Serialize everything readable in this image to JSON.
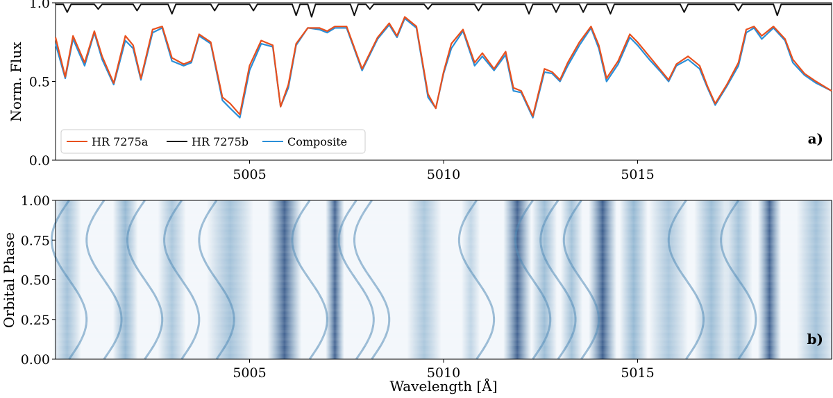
{
  "chart_data": [
    {
      "id": "a",
      "type": "line",
      "panel_label": "a)",
      "xlabel": "",
      "ylabel": "Norm. Flux",
      "xlim": [
        5000.0,
        5020.0
      ],
      "ylim": [
        0.0,
        1.0
      ],
      "xticks": [
        5005,
        5010,
        5015
      ],
      "yticks": [
        0.0,
        0.5,
        1.0
      ],
      "ytick_labels": [
        "0.0",
        "0.5",
        "1.0"
      ],
      "legend_position": "bottom-left",
      "series": [
        {
          "name": "HR 7275a",
          "color": "#e8501e",
          "x": [
            5000.0,
            5000.25,
            5000.45,
            5000.75,
            5001.0,
            5001.2,
            5001.5,
            5001.8,
            5002.0,
            5002.2,
            5002.5,
            5002.75,
            5003.0,
            5003.3,
            5003.5,
            5003.7,
            5004.0,
            5004.3,
            5004.5,
            5004.75,
            5005.0,
            5005.3,
            5005.6,
            5005.8,
            5006.0,
            5006.2,
            5006.5,
            5006.8,
            5007.0,
            5007.2,
            5007.5,
            5007.9,
            5008.3,
            5008.6,
            5008.8,
            5009.0,
            5009.3,
            5009.6,
            5009.8,
            5010.0,
            5010.2,
            5010.5,
            5010.8,
            5011.0,
            5011.3,
            5011.6,
            5011.8,
            5012.0,
            5012.3,
            5012.6,
            5012.8,
            5013.0,
            5013.2,
            5013.5,
            5013.8,
            5014.0,
            5014.2,
            5014.5,
            5014.8,
            5015.0,
            5015.3,
            5015.6,
            5015.8,
            5016.0,
            5016.3,
            5016.6,
            5016.8,
            5017.0,
            5017.3,
            5017.6,
            5017.8,
            5018.0,
            5018.2,
            5018.5,
            5018.8,
            5019.0,
            5019.3,
            5019.6,
            5020.0
          ],
          "y": [
            0.78,
            0.53,
            0.79,
            0.62,
            0.82,
            0.66,
            0.49,
            0.79,
            0.73,
            0.52,
            0.83,
            0.85,
            0.65,
            0.61,
            0.63,
            0.8,
            0.75,
            0.4,
            0.36,
            0.29,
            0.6,
            0.76,
            0.73,
            0.34,
            0.48,
            0.74,
            0.84,
            0.84,
            0.82,
            0.85,
            0.85,
            0.58,
            0.78,
            0.87,
            0.79,
            0.91,
            0.85,
            0.42,
            0.33,
            0.56,
            0.74,
            0.83,
            0.62,
            0.68,
            0.58,
            0.69,
            0.46,
            0.44,
            0.28,
            0.58,
            0.56,
            0.51,
            0.62,
            0.75,
            0.85,
            0.73,
            0.52,
            0.63,
            0.8,
            0.75,
            0.66,
            0.57,
            0.51,
            0.61,
            0.66,
            0.6,
            0.47,
            0.36,
            0.48,
            0.62,
            0.83,
            0.85,
            0.79,
            0.85,
            0.77,
            0.64,
            0.55,
            0.5,
            0.44
          ],
          "x_note": "values estimated from the figure"
        },
        {
          "name": "HR 7275b",
          "color": "#111111",
          "x": [
            5000.0,
            5000.2,
            5000.3,
            5000.4,
            5001.0,
            5001.1,
            5001.2,
            5002.0,
            5002.1,
            5002.2,
            5002.9,
            5003.0,
            5003.1,
            5004.0,
            5004.1,
            5004.2,
            5005.0,
            5005.1,
            5005.2,
            5006.1,
            5006.2,
            5006.3,
            5006.5,
            5006.6,
            5006.7,
            5007.6,
            5007.7,
            5007.8,
            5008.0,
            5008.1,
            5008.2,
            5009.5,
            5009.6,
            5009.7,
            5010.8,
            5010.9,
            5011.0,
            5012.1,
            5012.2,
            5012.3,
            5012.8,
            5012.9,
            5013.0,
            5013.5,
            5013.6,
            5013.7,
            5014.2,
            5014.3,
            5014.4,
            5016.1,
            5016.2,
            5016.3,
            5017.5,
            5017.6,
            5017.7,
            5018.5,
            5018.6,
            5018.7,
            5019.2,
            5020.0
          ],
          "y": [
            0.99,
            0.99,
            0.94,
            0.99,
            0.99,
            0.96,
            0.99,
            0.99,
            0.95,
            0.99,
            0.99,
            0.93,
            0.99,
            0.99,
            0.95,
            0.99,
            0.99,
            0.95,
            0.99,
            0.99,
            0.92,
            0.99,
            0.99,
            0.91,
            0.99,
            0.99,
            0.92,
            0.99,
            0.99,
            0.96,
            0.99,
            0.99,
            0.96,
            0.99,
            0.99,
            0.95,
            0.99,
            0.99,
            0.93,
            0.99,
            0.99,
            0.94,
            0.99,
            0.99,
            0.94,
            0.99,
            0.99,
            0.93,
            0.99,
            0.99,
            0.94,
            0.99,
            0.99,
            0.95,
            0.99,
            0.99,
            0.92,
            0.99,
            0.99,
            0.99
          ]
        },
        {
          "name": "Composite",
          "color": "#2a8fd8",
          "x": [
            5000.0,
            5000.25,
            5000.45,
            5000.75,
            5001.0,
            5001.2,
            5001.5,
            5001.8,
            5002.0,
            5002.2,
            5002.5,
            5002.75,
            5003.0,
            5003.3,
            5003.5,
            5003.7,
            5004.0,
            5004.3,
            5004.5,
            5004.75,
            5005.0,
            5005.3,
            5005.6,
            5005.8,
            5006.0,
            5006.2,
            5006.5,
            5006.8,
            5007.0,
            5007.2,
            5007.5,
            5007.9,
            5008.3,
            5008.6,
            5008.8,
            5009.0,
            5009.3,
            5009.6,
            5009.8,
            5010.0,
            5010.2,
            5010.5,
            5010.8,
            5011.0,
            5011.3,
            5011.6,
            5011.8,
            5012.0,
            5012.3,
            5012.6,
            5012.8,
            5013.0,
            5013.2,
            5013.5,
            5013.8,
            5014.0,
            5014.2,
            5014.5,
            5014.8,
            5015.0,
            5015.3,
            5015.6,
            5015.8,
            5016.0,
            5016.3,
            5016.6,
            5016.8,
            5017.0,
            5017.3,
            5017.6,
            5017.8,
            5018.0,
            5018.2,
            5018.5,
            5018.8,
            5019.0,
            5019.3,
            5019.6,
            5020.0
          ],
          "y": [
            0.74,
            0.52,
            0.77,
            0.6,
            0.81,
            0.64,
            0.48,
            0.76,
            0.71,
            0.51,
            0.81,
            0.84,
            0.63,
            0.6,
            0.62,
            0.79,
            0.74,
            0.38,
            0.33,
            0.27,
            0.57,
            0.74,
            0.72,
            0.34,
            0.46,
            0.73,
            0.84,
            0.83,
            0.81,
            0.84,
            0.84,
            0.57,
            0.77,
            0.86,
            0.78,
            0.9,
            0.84,
            0.4,
            0.33,
            0.55,
            0.71,
            0.82,
            0.6,
            0.66,
            0.57,
            0.67,
            0.44,
            0.43,
            0.27,
            0.56,
            0.55,
            0.5,
            0.6,
            0.73,
            0.84,
            0.71,
            0.5,
            0.61,
            0.78,
            0.73,
            0.64,
            0.56,
            0.5,
            0.6,
            0.64,
            0.58,
            0.46,
            0.35,
            0.47,
            0.6,
            0.81,
            0.84,
            0.77,
            0.84,
            0.76,
            0.62,
            0.54,
            0.49,
            0.44
          ]
        }
      ]
    },
    {
      "id": "b",
      "type": "heatmap",
      "panel_label": "b)",
      "xlabel": "Wavelength [Å]",
      "ylabel": "Orbital Phase",
      "xlim": [
        5000.0,
        5020.0
      ],
      "ylim": [
        0.0,
        1.0
      ],
      "xticks": [
        5005,
        5010,
        5015
      ],
      "yticks": [
        0.0,
        0.25,
        0.5,
        0.75,
        1.0
      ],
      "ytick_labels": [
        "0.00",
        "0.25",
        "0.50",
        "0.75",
        "1.00"
      ],
      "colormap": [
        "#ffffff",
        "#b8d3e6",
        "#4f93bd",
        "#08306b"
      ],
      "absorption_bands_primary": [
        {
          "center": 5000.3,
          "width": 0.18,
          "depth": 0.55
        },
        {
          "center": 5001.8,
          "width": 0.16,
          "depth": 0.65
        },
        {
          "center": 5003.0,
          "width": 0.18,
          "depth": 0.5
        },
        {
          "center": 5004.5,
          "width": 0.3,
          "depth": 0.55
        },
        {
          "center": 5005.9,
          "width": 0.22,
          "depth": 0.95
        },
        {
          "center": 5007.2,
          "width": 0.12,
          "depth": 0.95
        },
        {
          "center": 5009.5,
          "width": 0.22,
          "depth": 0.5
        },
        {
          "center": 5010.7,
          "width": 0.12,
          "depth": 0.35
        },
        {
          "center": 5011.9,
          "width": 0.18,
          "depth": 0.95
        },
        {
          "center": 5012.6,
          "width": 0.16,
          "depth": 0.6
        },
        {
          "center": 5013.3,
          "width": 0.14,
          "depth": 0.55
        },
        {
          "center": 5014.1,
          "width": 0.18,
          "depth": 0.98
        },
        {
          "center": 5014.9,
          "width": 0.18,
          "depth": 0.65
        },
        {
          "center": 5015.8,
          "width": 0.25,
          "depth": 0.5
        },
        {
          "center": 5016.9,
          "width": 0.22,
          "depth": 0.6
        },
        {
          "center": 5017.6,
          "width": 0.18,
          "depth": 0.55
        },
        {
          "center": 5018.4,
          "width": 0.15,
          "depth": 0.95
        },
        {
          "center": 5019.6,
          "width": 0.25,
          "depth": 0.55
        }
      ],
      "companion_lines": [
        5000.35,
        5001.25,
        5002.3,
        5003.25,
        5004.15,
        5006.55,
        5007.75,
        5008.15,
        5010.85,
        5012.3,
        5012.95,
        5013.55,
        5016.25,
        5017.6
      ],
      "companion_amplitude_angstrom": 0.45
    }
  ]
}
